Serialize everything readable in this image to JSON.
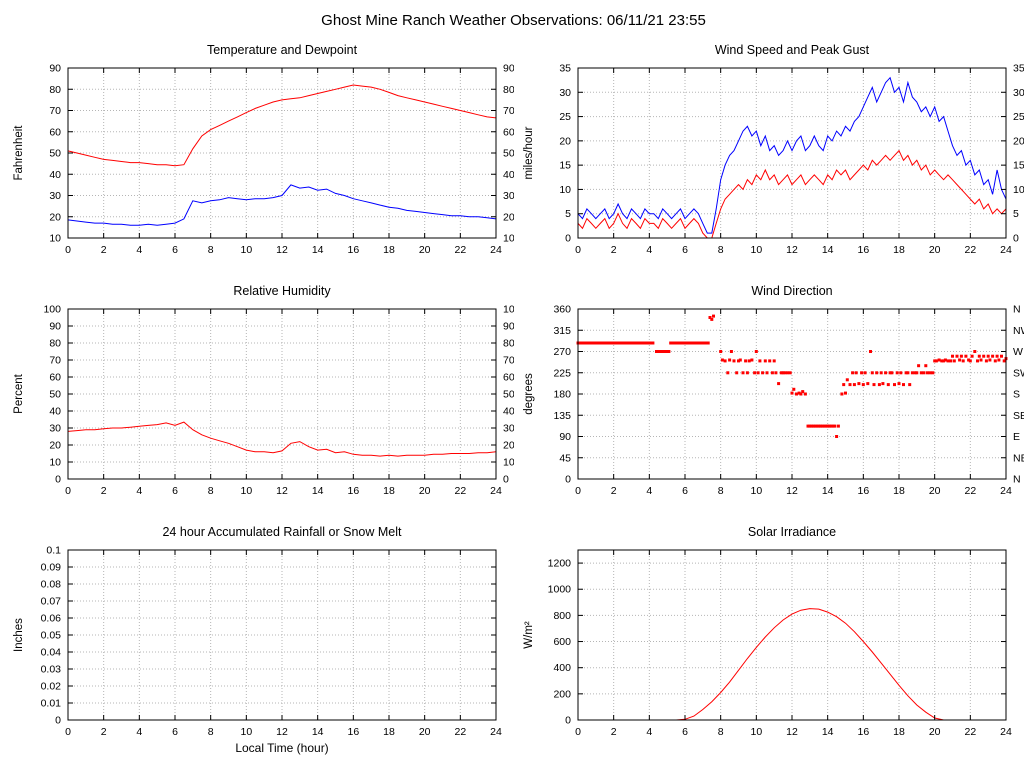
{
  "title": "Ghost Mine Ranch Weather Observations: 06/11/21 23:55",
  "chart_data": [
    {
      "id": "temperature-dewpoint",
      "type": "line",
      "title": "Temperature and Dewpoint",
      "ylabel": "Fahrenheit",
      "xlim": [
        0,
        24
      ],
      "ylim": [
        10,
        90
      ],
      "xticks": [
        0,
        2,
        4,
        6,
        8,
        10,
        12,
        14,
        16,
        18,
        20,
        22,
        24
      ],
      "yticks": [
        10,
        20,
        30,
        40,
        50,
        60,
        70,
        80,
        90
      ],
      "right_labels": true,
      "grid": true,
      "series": [
        {
          "name": "Temperature",
          "color": "#ff0000",
          "x_start": 0,
          "x_step": 0.5,
          "y": [
            51,
            50,
            49,
            48,
            47,
            46.5,
            46,
            45.5,
            45.5,
            45,
            44.5,
            44.5,
            44,
            44.5,
            52,
            58,
            61,
            63,
            65,
            67,
            69,
            71,
            72.5,
            74,
            75,
            75.5,
            76,
            77,
            78,
            79,
            80,
            81,
            82,
            81.5,
            81,
            80,
            78.5,
            77,
            76,
            75,
            74,
            73,
            72,
            71,
            70,
            69,
            68,
            67,
            66.5
          ]
        },
        {
          "name": "Dewpoint",
          "color": "#0000ff",
          "x_start": 0,
          "x_step": 0.5,
          "y": [
            18.5,
            18,
            17.5,
            17,
            17,
            16.5,
            16.5,
            16,
            16,
            16.5,
            16,
            16.5,
            17,
            19,
            27.5,
            26.5,
            27.5,
            28,
            29,
            28.5,
            28,
            28.5,
            28.5,
            29,
            30,
            35,
            33.5,
            34,
            32.5,
            33,
            31,
            30,
            28.5,
            27.5,
            26.5,
            25.5,
            24.5,
            24,
            23,
            22.5,
            22,
            21.5,
            21,
            20.5,
            20.5,
            20,
            20,
            19.5,
            19
          ]
        }
      ]
    },
    {
      "id": "wind-speed-gust",
      "type": "line",
      "title": "Wind Speed and Peak Gust",
      "ylabel": "miles/hour",
      "xlim": [
        0,
        24
      ],
      "ylim": [
        0,
        35
      ],
      "xticks": [
        0,
        2,
        4,
        6,
        8,
        10,
        12,
        14,
        16,
        18,
        20,
        22,
        24
      ],
      "yticks": [
        0,
        5,
        10,
        15,
        20,
        25,
        30,
        35
      ],
      "right_labels": true,
      "grid": true,
      "series": [
        {
          "name": "Peak Gust",
          "color": "#0000ff",
          "x_start": 0,
          "x_step": 0.25,
          "y": [
            5,
            4,
            6,
            5,
            4,
            5,
            6,
            4,
            5,
            7,
            5,
            4,
            6,
            5,
            4,
            6,
            5,
            5,
            4,
            6,
            5,
            4,
            5,
            6,
            4,
            5,
            6,
            5,
            3,
            1,
            1,
            6,
            12,
            15,
            17,
            18,
            20,
            22,
            23,
            21,
            22,
            19,
            21,
            18,
            19,
            17,
            18,
            20,
            18,
            20,
            21,
            18,
            19,
            21,
            19,
            18,
            21,
            20,
            22,
            21,
            23,
            22,
            24,
            25,
            27,
            29,
            31,
            28,
            30,
            32,
            33,
            30,
            31,
            28,
            32,
            29,
            28,
            26,
            27,
            25,
            27,
            24,
            25,
            22,
            19,
            17,
            18,
            15,
            16,
            13,
            14,
            11,
            12,
            9,
            14,
            10,
            8
          ]
        },
        {
          "name": "Wind Speed",
          "color": "#ff0000",
          "x_start": 0,
          "x_step": 0.25,
          "y": [
            3,
            2,
            4,
            3,
            2,
            3,
            4,
            2,
            3,
            5,
            3,
            2,
            4,
            3,
            2,
            4,
            3,
            3,
            2,
            4,
            3,
            2,
            3,
            4,
            2,
            3,
            4,
            3,
            1,
            0,
            0,
            3,
            6,
            8,
            9,
            10,
            11,
            10,
            12,
            11,
            13,
            12,
            14,
            12,
            13,
            11,
            12,
            13,
            11,
            12,
            13,
            11,
            12,
            13,
            12,
            11,
            13,
            12,
            14,
            13,
            14,
            12,
            13,
            14,
            15,
            14,
            16,
            15,
            16,
            17,
            16,
            17,
            18,
            16,
            17,
            15,
            16,
            14,
            15,
            13,
            14,
            13,
            12,
            13,
            12,
            11,
            10,
            9,
            8,
            7,
            8,
            6,
            7,
            5,
            6,
            5,
            6
          ]
        }
      ]
    },
    {
      "id": "relative-humidity",
      "type": "line",
      "title": "Relative Humidity",
      "ylabel": "Percent",
      "xlim": [
        0,
        24
      ],
      "ylim": [
        0,
        100
      ],
      "xticks": [
        0,
        2,
        4,
        6,
        8,
        10,
        12,
        14,
        16,
        18,
        20,
        22,
        24
      ],
      "yticks": [
        0,
        10,
        20,
        30,
        40,
        50,
        60,
        70,
        80,
        90,
        100
      ],
      "right_labels": true,
      "grid": true,
      "series": [
        {
          "name": "Relative Humidity",
          "color": "#ff0000",
          "x_start": 0,
          "x_step": 0.5,
          "y": [
            28,
            28.5,
            29,
            29,
            29.5,
            30,
            30,
            30.5,
            31,
            31.5,
            32,
            33,
            31.5,
            33.5,
            29,
            26,
            24,
            22.5,
            21,
            19,
            17,
            16,
            16,
            15.5,
            16.5,
            21,
            22,
            19,
            17,
            17.5,
            15.5,
            16,
            14.5,
            14,
            14,
            13.5,
            14,
            13.5,
            14,
            14,
            14,
            14.5,
            14.5,
            15,
            15,
            15,
            15.5,
            15.5,
            16
          ]
        }
      ]
    },
    {
      "id": "wind-direction",
      "type": "scatter",
      "title": "Wind Direction",
      "ylabel": "degrees",
      "xlim": [
        0,
        24
      ],
      "ylim": [
        0,
        360
      ],
      "xticks": [
        0,
        2,
        4,
        6,
        8,
        10,
        12,
        14,
        16,
        18,
        20,
        22,
        24
      ],
      "yticks": [
        0,
        45,
        90,
        135,
        180,
        225,
        270,
        315,
        360
      ],
      "right_labels": [
        "N",
        "NE",
        "E",
        "SE",
        "S",
        "SW",
        "W",
        "NW",
        "N"
      ],
      "grid": true,
      "marker_color": "#ff0000",
      "runs": [
        {
          "x0": 0,
          "x1": 4.25,
          "y": 288,
          "step": 0.1
        },
        {
          "x0": 4.4,
          "x1": 5.1,
          "y": 270,
          "step": 0.1
        },
        {
          "x0": 5.2,
          "x1": 7.3,
          "y": 288,
          "step": 0.1
        },
        {
          "x0": 12.9,
          "x1": 14.4,
          "y": 112,
          "step": 0.1
        }
      ],
      "points": [
        [
          7.4,
          342
        ],
        [
          7.5,
          338
        ],
        [
          7.6,
          345
        ],
        [
          8.0,
          270
        ],
        [
          8.1,
          252
        ],
        [
          8.25,
          250
        ],
        [
          8.4,
          225
        ],
        [
          8.5,
          252
        ],
        [
          8.6,
          270
        ],
        [
          8.75,
          250
        ],
        [
          8.9,
          225
        ],
        [
          9.0,
          250
        ],
        [
          9.1,
          252
        ],
        [
          9.25,
          225
        ],
        [
          9.4,
          250
        ],
        [
          9.5,
          225
        ],
        [
          9.6,
          250
        ],
        [
          9.75,
          252
        ],
        [
          9.9,
          225
        ],
        [
          10.0,
          270
        ],
        [
          10.1,
          225
        ],
        [
          10.2,
          250
        ],
        [
          10.35,
          225
        ],
        [
          10.5,
          250
        ],
        [
          10.6,
          225
        ],
        [
          10.75,
          250
        ],
        [
          10.9,
          225
        ],
        [
          11.0,
          250
        ],
        [
          11.1,
          225
        ],
        [
          11.25,
          202
        ],
        [
          11.4,
          225
        ],
        [
          11.5,
          225
        ],
        [
          11.6,
          225
        ],
        [
          11.75,
          225
        ],
        [
          11.9,
          225
        ],
        [
          12.0,
          182
        ],
        [
          12.1,
          190
        ],
        [
          12.25,
          180
        ],
        [
          12.4,
          182
        ],
        [
          12.5,
          180
        ],
        [
          12.6,
          185
        ],
        [
          12.75,
          180
        ],
        [
          14.5,
          90
        ],
        [
          14.6,
          112
        ],
        [
          14.8,
          180
        ],
        [
          14.9,
          200
        ],
        [
          15.0,
          182
        ],
        [
          15.1,
          210
        ],
        [
          15.25,
          200
        ],
        [
          15.4,
          225
        ],
        [
          15.5,
          200
        ],
        [
          15.6,
          225
        ],
        [
          15.75,
          202
        ],
        [
          15.9,
          225
        ],
        [
          16.0,
          200
        ],
        [
          16.1,
          225
        ],
        [
          16.25,
          202
        ],
        [
          16.4,
          270
        ],
        [
          16.5,
          225
        ],
        [
          16.6,
          200
        ],
        [
          16.75,
          225
        ],
        [
          16.9,
          200
        ],
        [
          17.0,
          225
        ],
        [
          17.1,
          202
        ],
        [
          17.25,
          225
        ],
        [
          17.4,
          200
        ],
        [
          17.5,
          225
        ],
        [
          17.6,
          225
        ],
        [
          17.75,
          200
        ],
        [
          17.9,
          225
        ],
        [
          18.0,
          202
        ],
        [
          18.1,
          225
        ],
        [
          18.25,
          200
        ],
        [
          18.4,
          225
        ],
        [
          18.5,
          225
        ],
        [
          18.6,
          200
        ],
        [
          18.75,
          225
        ],
        [
          18.9,
          225
        ],
        [
          19.0,
          225
        ],
        [
          19.1,
          240
        ],
        [
          19.25,
          225
        ],
        [
          19.4,
          225
        ],
        [
          19.5,
          240
        ],
        [
          19.6,
          225
        ],
        [
          19.75,
          225
        ],
        [
          19.9,
          225
        ],
        [
          20.0,
          250
        ],
        [
          20.1,
          250
        ],
        [
          20.25,
          252
        ],
        [
          20.4,
          250
        ],
        [
          20.5,
          250
        ],
        [
          20.6,
          252
        ],
        [
          20.75,
          250
        ],
        [
          20.9,
          250
        ],
        [
          21.0,
          260
        ],
        [
          21.1,
          250
        ],
        [
          21.25,
          260
        ],
        [
          21.4,
          252
        ],
        [
          21.5,
          260
        ],
        [
          21.6,
          250
        ],
        [
          21.75,
          260
        ],
        [
          21.9,
          252
        ],
        [
          22.0,
          250
        ],
        [
          22.1,
          260
        ],
        [
          22.25,
          270
        ],
        [
          22.4,
          250
        ],
        [
          22.5,
          260
        ],
        [
          22.6,
          252
        ],
        [
          22.75,
          260
        ],
        [
          22.9,
          250
        ],
        [
          23.0,
          260
        ],
        [
          23.1,
          252
        ],
        [
          23.25,
          260
        ],
        [
          23.4,
          250
        ],
        [
          23.5,
          260
        ],
        [
          23.6,
          252
        ],
        [
          23.75,
          260
        ],
        [
          23.9,
          250
        ],
        [
          24.0,
          255
        ]
      ]
    },
    {
      "id": "rainfall",
      "type": "line",
      "title": "24 hour Accumulated Rainfall or Snow Melt",
      "ylabel": "Inches",
      "xlabel": "Local Time (hour)",
      "xlim": [
        0,
        24
      ],
      "ylim": [
        0,
        0.1
      ],
      "xticks": [
        0,
        2,
        4,
        6,
        8,
        10,
        12,
        14,
        16,
        18,
        20,
        22,
        24
      ],
      "yticks": [
        0,
        0.01,
        0.02,
        0.03,
        0.04,
        0.05,
        0.06,
        0.07,
        0.08,
        0.09,
        0.1
      ],
      "grid": true,
      "series": [
        {
          "name": "Rainfall",
          "color": "#ff0000",
          "x": [
            0,
            24
          ],
          "y": [
            0,
            0
          ]
        }
      ]
    },
    {
      "id": "solar-irradiance",
      "type": "line",
      "title": "Solar Irradiance",
      "ylabel": "W/m²",
      "xlim": [
        0,
        24
      ],
      "ylim": [
        0,
        1300
      ],
      "xticks": [
        0,
        2,
        4,
        6,
        8,
        10,
        12,
        14,
        16,
        18,
        20,
        22,
        24
      ],
      "yticks": [
        0,
        200,
        400,
        600,
        800,
        1000,
        1200
      ],
      "grid": true,
      "series": [
        {
          "name": "Solar Irradiance",
          "color": "#ff0000",
          "x_start": 0,
          "x_step": 0.5,
          "y": [
            0,
            0,
            0,
            0,
            0,
            0,
            0,
            0,
            0,
            0,
            0,
            0,
            5,
            30,
            80,
            140,
            210,
            290,
            380,
            470,
            555,
            635,
            705,
            765,
            810,
            840,
            852,
            848,
            825,
            790,
            740,
            675,
            600,
            520,
            435,
            350,
            265,
            185,
            115,
            60,
            15,
            0,
            0,
            0,
            0,
            0,
            0,
            0,
            0
          ]
        }
      ]
    }
  ]
}
